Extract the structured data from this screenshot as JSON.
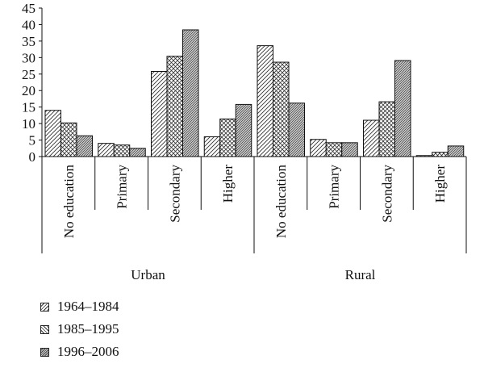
{
  "chart_data": {
    "type": "bar",
    "groups": [
      {
        "name": "Urban",
        "categories": [
          "No education",
          "Primary",
          "Secondary",
          "Higher"
        ]
      },
      {
        "name": "Rural",
        "categories": [
          "No education",
          "Primary",
          "Secondary",
          "Higher"
        ]
      }
    ],
    "series": [
      {
        "name": "1964–1984",
        "pattern": "diagonal",
        "values": [
          14,
          4,
          25.8,
          6,
          33.6,
          5.2,
          11,
          0.3
        ]
      },
      {
        "name": "1985–1995",
        "pattern": "crosshatch",
        "values": [
          10.2,
          3.5,
          30.4,
          11.4,
          28.6,
          4.2,
          16.6,
          1.3
        ]
      },
      {
        "name": "1996–2006",
        "pattern": "dense-diagonal",
        "values": [
          6.3,
          2.5,
          38.4,
          15.8,
          16.2,
          4.2,
          29.1,
          3.2
        ]
      }
    ],
    "yticks": [
      0,
      5,
      10,
      15,
      20,
      25,
      30,
      35,
      40,
      45
    ],
    "ylim": [
      0,
      45
    ],
    "grid": false,
    "legend_position": "bottom-left"
  }
}
